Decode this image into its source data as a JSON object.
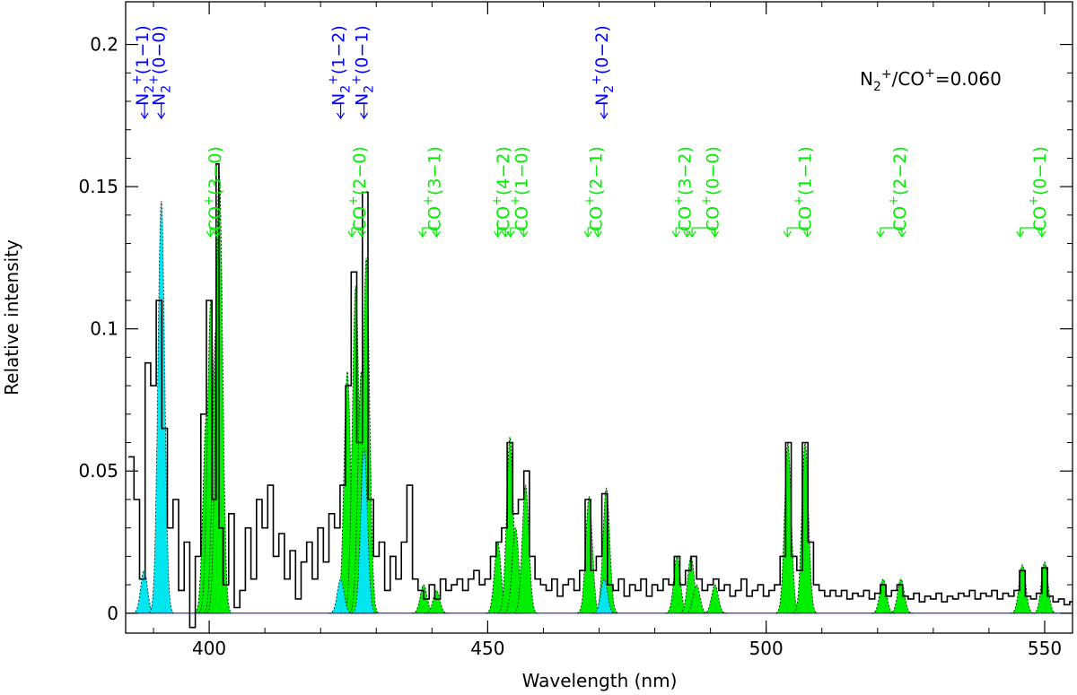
{
  "chart_data": {
    "type": "line",
    "title": "",
    "xlabel": "Wavelength (nm)",
    "ylabel": "Relative intensity",
    "xlim": [
      385,
      555
    ],
    "ylim": [
      -0.007,
      0.215
    ],
    "xticks": [
      400,
      450,
      500,
      550
    ],
    "yticks": [
      0,
      0.05,
      0.1,
      0.15,
      0.2
    ],
    "ytick_labels": [
      "0",
      "0.05",
      "0.1",
      "0.15",
      "0.2"
    ],
    "ratio_annotation": {
      "lhs": "N",
      "sub": "2",
      "sup": "+",
      "rhs": "/CO",
      "rhs_sup": "+",
      "value": "=0.060"
    },
    "colors": {
      "observed": "#000000",
      "co_plus": "#00ee00",
      "n2_plus": "#00e5ee",
      "n2_label": "#0000ff",
      "fit": "#000000",
      "baseline": "#0000cc"
    },
    "series": [
      {
        "name": "",
        "role": "observed",
        "points": [
          [
            386,
            0.055
          ],
          [
            387,
            0.04
          ],
          [
            388,
            0.012
          ],
          [
            389,
            0.088
          ],
          [
            390,
            0.08
          ],
          [
            391,
            0.11
          ],
          [
            392,
            0.065
          ],
          [
            393,
            0.03
          ],
          [
            394,
            0.04
          ],
          [
            395,
            0.008
          ],
          [
            396,
            0.025
          ],
          [
            397,
            -0.005
          ],
          [
            398,
            0.02
          ],
          [
            399,
            0.07
          ],
          [
            400,
            0.11
          ],
          [
            401,
            0.04
          ],
          [
            401.5,
            0.158
          ],
          [
            402,
            0.03
          ],
          [
            403,
            0.01
          ],
          [
            404,
            0.035
          ],
          [
            405,
            0.002
          ],
          [
            406,
            0.008
          ],
          [
            407,
            0.03
          ],
          [
            408,
            0.012
          ],
          [
            409,
            0.04
          ],
          [
            410,
            0.03
          ],
          [
            411,
            0.045
          ],
          [
            412,
            0.02
          ],
          [
            413,
            0.028
          ],
          [
            414,
            0.012
          ],
          [
            415,
            0.022
          ],
          [
            416,
            0.005
          ],
          [
            417,
            0.018
          ],
          [
            418,
            0.025
          ],
          [
            419,
            0.012
          ],
          [
            420,
            0.03
          ],
          [
            421,
            0.018
          ],
          [
            422,
            0.035
          ],
          [
            423,
            0.03
          ],
          [
            424,
            0.045
          ],
          [
            425,
            0.08
          ],
          [
            426,
            0.12
          ],
          [
            427,
            0.06
          ],
          [
            428,
            0.148
          ],
          [
            429,
            0.04
          ],
          [
            430,
            0.02
          ],
          [
            431,
            0.025
          ],
          [
            432,
            0.008
          ],
          [
            433,
            0.02
          ],
          [
            434,
            0.012
          ],
          [
            435,
            0.025
          ],
          [
            436,
            0.045
          ],
          [
            437,
            0.012
          ],
          [
            438,
            0.008
          ],
          [
            439,
            0.005
          ],
          [
            440,
            0.01
          ],
          [
            441,
            0.005
          ],
          [
            442,
            0.012
          ],
          [
            443,
            0.008
          ],
          [
            444,
            0.01
          ],
          [
            445,
            0.012
          ],
          [
            446,
            0.008
          ],
          [
            447,
            0.012
          ],
          [
            448,
            0.015
          ],
          [
            449,
            0.01
          ],
          [
            450,
            0.012
          ],
          [
            451,
            0.02
          ],
          [
            452,
            0.025
          ],
          [
            453,
            0.03
          ],
          [
            454,
            0.06
          ],
          [
            455,
            0.035
          ],
          [
            456,
            0.04
          ],
          [
            457,
            0.05
          ],
          [
            458,
            0.02
          ],
          [
            459,
            0.012
          ],
          [
            460,
            0.01
          ],
          [
            461,
            0.008
          ],
          [
            462,
            0.012
          ],
          [
            463,
            0.006
          ],
          [
            464,
            0.01
          ],
          [
            465,
            0.012
          ],
          [
            466,
            0.008
          ],
          [
            467,
            0.015
          ],
          [
            468,
            0.04
          ],
          [
            469,
            0.015
          ],
          [
            470,
            0.02
          ],
          [
            471,
            0.042
          ],
          [
            472,
            0.01
          ],
          [
            473,
            0.008
          ],
          [
            474,
            0.012
          ],
          [
            475,
            0.006
          ],
          [
            476,
            0.01
          ],
          [
            477,
            0.008
          ],
          [
            478,
            0.012
          ],
          [
            479,
            0.006
          ],
          [
            480,
            0.01
          ],
          [
            481,
            0.008
          ],
          [
            482,
            0.012
          ],
          [
            483,
            0.01
          ],
          [
            484,
            0.02
          ],
          [
            485,
            0.01
          ],
          [
            486,
            0.015
          ],
          [
            487,
            0.02
          ],
          [
            488,
            0.012
          ],
          [
            489,
            0.008
          ],
          [
            490,
            0.01
          ],
          [
            491,
            0.012
          ],
          [
            492,
            0.008
          ],
          [
            493,
            0.01
          ],
          [
            494,
            0.006
          ],
          [
            495,
            0.008
          ],
          [
            496,
            0.012
          ],
          [
            497,
            0.006
          ],
          [
            498,
            0.008
          ],
          [
            499,
            0.01
          ],
          [
            500,
            0.006
          ],
          [
            501,
            0.008
          ],
          [
            502,
            0.01
          ],
          [
            503,
            0.02
          ],
          [
            504,
            0.06
          ],
          [
            505,
            0.02
          ],
          [
            506,
            0.015
          ],
          [
            507,
            0.06
          ],
          [
            508,
            0.025
          ],
          [
            509,
            0.01
          ],
          [
            510,
            0.008
          ],
          [
            511,
            0.006
          ],
          [
            512,
            0.008
          ],
          [
            513,
            0.006
          ],
          [
            514,
            0.008
          ],
          [
            515,
            0.005
          ],
          [
            516,
            0.007
          ],
          [
            517,
            0.006
          ],
          [
            518,
            0.008
          ],
          [
            519,
            0.005
          ],
          [
            520,
            0.007
          ],
          [
            521,
            0.01
          ],
          [
            522,
            0.006
          ],
          [
            523,
            0.008
          ],
          [
            524,
            0.01
          ],
          [
            525,
            0.006
          ],
          [
            526,
            0.005
          ],
          [
            527,
            0.007
          ],
          [
            528,
            0.004
          ],
          [
            529,
            0.006
          ],
          [
            530,
            0.005
          ],
          [
            531,
            0.007
          ],
          [
            532,
            0.004
          ],
          [
            533,
            0.006
          ],
          [
            534,
            0.005
          ],
          [
            535,
            0.007
          ],
          [
            536,
            0.006
          ],
          [
            537,
            0.008
          ],
          [
            538,
            0.005
          ],
          [
            539,
            0.007
          ],
          [
            540,
            0.006
          ],
          [
            541,
            0.008
          ],
          [
            542,
            0.005
          ],
          [
            543,
            0.007
          ],
          [
            544,
            0.006
          ],
          [
            545,
            0.008
          ],
          [
            546,
            0.015
          ],
          [
            547,
            0.006
          ],
          [
            548,
            0.005
          ],
          [
            549,
            0.007
          ],
          [
            550,
            0.016
          ],
          [
            551,
            0.006
          ],
          [
            552,
            0.004
          ],
          [
            553,
            0.005
          ],
          [
            554,
            0.003
          ],
          [
            555,
            0.004
          ]
        ]
      },
      {
        "name": "",
        "role": "co_plus_model",
        "peaks": [
          [
            399.5,
            0.07
          ],
          [
            400.3,
            0.11
          ],
          [
            401.2,
            0.1
          ],
          [
            401.8,
            0.155
          ],
          [
            424.8,
            0.085
          ],
          [
            426.3,
            0.115
          ],
          [
            427.3,
            0.085
          ],
          [
            428.2,
            0.125
          ],
          [
            438.5,
            0.01
          ],
          [
            440.8,
            0.008
          ],
          [
            451.8,
            0.025
          ],
          [
            454.0,
            0.062
          ],
          [
            455.0,
            0.03
          ],
          [
            456.8,
            0.045
          ],
          [
            468.2,
            0.041
          ],
          [
            471.3,
            0.044
          ],
          [
            484.0,
            0.02
          ],
          [
            486.5,
            0.02
          ],
          [
            487.5,
            0.01
          ],
          [
            490.8,
            0.01
          ],
          [
            503.9,
            0.06
          ],
          [
            507.0,
            0.06
          ],
          [
            521.0,
            0.012
          ],
          [
            524.2,
            0.012
          ],
          [
            546.0,
            0.017
          ],
          [
            550.0,
            0.018
          ]
        ],
        "width_nm": 0.6
      },
      {
        "name": "",
        "role": "n2_plus_model",
        "peaks": [
          [
            388.3,
            0.015
          ],
          [
            391.4,
            0.145
          ],
          [
            423.6,
            0.012
          ],
          [
            427.8,
            0.058
          ],
          [
            470.9,
            0.012
          ]
        ],
        "width_nm": 0.6
      }
    ],
    "line_labels": [
      {
        "molecule": "N2+",
        "band": "(1-1)",
        "x": [
          388.4
        ]
      },
      {
        "molecule": "N2+",
        "band": "(0-0)",
        "x": [
          391.4
        ]
      },
      {
        "molecule": "N2+",
        "band": "(1-2)",
        "x": [
          423.6
        ]
      },
      {
        "molecule": "N2+",
        "band": "(0-1)",
        "x": [
          427.8
        ]
      },
      {
        "molecule": "N2+",
        "band": "(0-2)",
        "x": [
          470.9
        ]
      },
      {
        "molecule": "CO+",
        "band": "(3-0)",
        "x": [
          400.2,
          401.4
        ]
      },
      {
        "molecule": "CO+",
        "band": "(2-0)",
        "x": [
          425.6,
          427.4
        ]
      },
      {
        "molecule": "CO+",
        "band": "(3-1)",
        "x": [
          438.3,
          440.8
        ]
      },
      {
        "molecule": "CO+",
        "band": "(4-2)",
        "x": [
          451.8,
          453.2
        ]
      },
      {
        "molecule": "CO+",
        "band": "(1-0)",
        "x": [
          454.1,
          456.5
        ]
      },
      {
        "molecule": "CO+",
        "band": "(2-1)",
        "x": [
          468.0,
          469.8
        ]
      },
      {
        "molecule": "CO+",
        "band": "(3-2)",
        "x": [
          483.8,
          485.8
        ]
      },
      {
        "molecule": "CO+",
        "band": "(0-0)",
        "x": [
          486.7,
          490.8
        ]
      },
      {
        "molecule": "CO+",
        "band": "(1-1)",
        "x": [
          503.8,
          507.4
        ]
      },
      {
        "molecule": "CO+",
        "band": "(2-2)",
        "x": [
          520.5,
          524.4
        ]
      },
      {
        "molecule": "CO+",
        "band": "(0-1)",
        "x": [
          545.6,
          549.5
        ]
      }
    ]
  }
}
